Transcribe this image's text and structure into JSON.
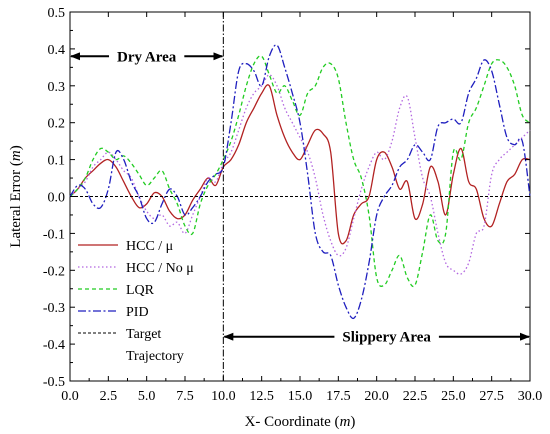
{
  "chart_data": {
    "type": "line",
    "xlabel": "X- Coordinate",
    "xlabel_unit": "m",
    "ylabel": "Lateral Error",
    "ylabel_unit": "m",
    "xlim": [
      0,
      30
    ],
    "ylim": [
      -0.5,
      0.5
    ],
    "xticks": [
      "0.0",
      "2.5",
      "5.0",
      "7.5",
      "10.0",
      "12.5",
      "15.0",
      "17.5",
      "20.0",
      "22.5",
      "25.0",
      "27.5",
      "30.0"
    ],
    "yticks": [
      "-0.5",
      "-0.4",
      "-0.3",
      "-0.2",
      "-0.1",
      "0.0",
      "0.1",
      "0.2",
      "0.3",
      "0.4",
      "0.5"
    ],
    "legend_position": "bottom-left",
    "regions": [
      {
        "label": "Dry Area",
        "x_range": [
          0,
          10
        ],
        "arrow_y": 0.38
      },
      {
        "label": "Slippery Area",
        "x_range": [
          10,
          30
        ],
        "arrow_y": -0.38
      }
    ],
    "divider_x": 10,
    "series": [
      {
        "name": "HCC / μ",
        "color": "#b22222",
        "dash": "solid",
        "x": [
          0,
          0.5,
          1,
          1.5,
          2,
          2.5,
          3,
          3.5,
          4,
          4.5,
          5,
          5.5,
          6,
          6.5,
          7,
          7.5,
          8,
          8.5,
          9,
          9.5,
          10,
          10.5,
          11,
          11.5,
          12,
          12.5,
          13,
          13.5,
          14,
          14.5,
          15,
          15.5,
          16,
          16.5,
          17,
          17.5,
          18,
          18.5,
          19,
          19.5,
          20,
          20.5,
          21,
          21.5,
          22,
          22.5,
          23,
          23.5,
          24,
          24.5,
          25,
          25.5,
          26,
          26.5,
          27,
          27.5,
          28,
          28.5,
          29,
          29.5,
          30
        ],
        "y": [
          0.0,
          0.02,
          0.05,
          0.07,
          0.09,
          0.1,
          0.08,
          0.04,
          0.0,
          -0.03,
          -0.02,
          0.01,
          0.0,
          -0.04,
          -0.06,
          -0.05,
          -0.01,
          0.02,
          0.05,
          0.03,
          0.08,
          0.1,
          0.14,
          0.2,
          0.24,
          0.28,
          0.3,
          0.22,
          0.16,
          0.12,
          0.1,
          0.14,
          0.18,
          0.17,
          0.12,
          -0.1,
          -0.12,
          -0.05,
          -0.02,
          0.0,
          0.1,
          0.12,
          0.08,
          0.02,
          0.04,
          -0.06,
          -0.02,
          0.08,
          0.04,
          -0.05,
          0.06,
          0.13,
          0.04,
          0.02,
          -0.06,
          -0.08,
          -0.02,
          0.04,
          0.06,
          0.1,
          0.1
        ]
      },
      {
        "name": "HCC / No μ",
        "color": "#b266e0",
        "dash": "1.5,2.5",
        "x": [
          0,
          0.5,
          1,
          1.5,
          2,
          2.5,
          3,
          3.5,
          4,
          4.5,
          5,
          5.5,
          6,
          6.5,
          7,
          7.5,
          8,
          8.5,
          9,
          9.5,
          10,
          10.5,
          11,
          11.5,
          12,
          12.5,
          13,
          13.5,
          14,
          14.5,
          15,
          15.5,
          16,
          16.5,
          17,
          17.5,
          18,
          18.5,
          19,
          19.5,
          20,
          20.5,
          21,
          21.5,
          22,
          22.5,
          23,
          23.5,
          24,
          24.5,
          25,
          25.5,
          26,
          26.5,
          27,
          27.5,
          28,
          28.5,
          29,
          29.5,
          30
        ],
        "y": [
          0.0,
          0.02,
          0.04,
          0.08,
          0.1,
          0.12,
          0.1,
          0.07,
          0.05,
          0.0,
          -0.04,
          -0.06,
          -0.05,
          -0.08,
          -0.07,
          -0.1,
          -0.05,
          0.0,
          0.05,
          0.04,
          0.09,
          0.12,
          0.18,
          0.24,
          0.28,
          0.3,
          0.33,
          0.3,
          0.24,
          0.2,
          0.16,
          0.12,
          0.05,
          -0.05,
          -0.12,
          -0.16,
          -0.14,
          -0.06,
          0.02,
          0.08,
          0.12,
          0.1,
          0.15,
          0.24,
          0.27,
          0.16,
          0.05,
          0.0,
          -0.1,
          -0.18,
          -0.2,
          -0.21,
          -0.18,
          -0.1,
          -0.08,
          0.06,
          0.1,
          0.12,
          0.14,
          0.16,
          0.18
        ]
      },
      {
        "name": "LQR",
        "color": "#22cc22",
        "dash": "4,3",
        "x": [
          0,
          0.5,
          1,
          1.5,
          2,
          2.5,
          3,
          3.5,
          4,
          4.5,
          5,
          5.5,
          6,
          6.5,
          7,
          7.5,
          8,
          8.5,
          9,
          9.5,
          10,
          10.5,
          11,
          11.5,
          12,
          12.5,
          13,
          13.5,
          14,
          14.5,
          15,
          15.5,
          16,
          16.5,
          17,
          17.5,
          18,
          18.5,
          19,
          19.5,
          20,
          20.5,
          21,
          21.5,
          22,
          22.5,
          23,
          23.5,
          24,
          24.5,
          25,
          25.5,
          26,
          26.5,
          27,
          27.5,
          28,
          28.5,
          29,
          29.5,
          30
        ],
        "y": [
          0.0,
          0.02,
          0.05,
          0.1,
          0.13,
          0.12,
          0.1,
          0.11,
          0.09,
          0.06,
          0.03,
          0.05,
          0.07,
          0.02,
          -0.02,
          -0.08,
          -0.1,
          -0.02,
          0.03,
          0.06,
          0.1,
          0.15,
          0.22,
          0.3,
          0.36,
          0.38,
          0.33,
          0.28,
          0.3,
          0.26,
          0.22,
          0.28,
          0.3,
          0.35,
          0.36,
          0.32,
          0.2,
          0.1,
          0.05,
          -0.05,
          -0.22,
          -0.24,
          -0.2,
          -0.16,
          -0.22,
          -0.24,
          -0.15,
          -0.05,
          -0.12,
          -0.1,
          0.12,
          0.1,
          0.2,
          0.24,
          0.3,
          0.36,
          0.37,
          0.35,
          0.3,
          0.22,
          0.2
        ]
      },
      {
        "name": "PID",
        "color": "#1f1fbf",
        "dash": "8,2.5,2,2.5",
        "x": [
          0,
          0.5,
          1,
          1.5,
          2,
          2.5,
          3,
          3.5,
          4,
          4.5,
          5,
          5.5,
          6,
          6.5,
          7,
          7.5,
          8,
          8.5,
          9,
          9.5,
          10,
          10.5,
          11,
          11.5,
          12,
          12.5,
          13,
          13.5,
          14,
          14.5,
          15,
          15.5,
          16,
          16.5,
          17,
          17.5,
          18,
          18.5,
          19,
          19.5,
          20,
          20.5,
          21,
          21.5,
          22,
          22.5,
          23,
          23.5,
          24,
          24.5,
          25,
          25.5,
          26,
          26.5,
          27,
          27.5,
          28,
          28.5,
          29,
          29.5,
          30
        ],
        "y": [
          0.0,
          0.03,
          0.02,
          -0.02,
          -0.03,
          0.02,
          0.12,
          0.1,
          0.04,
          0.0,
          -0.06,
          -0.07,
          -0.02,
          0.02,
          0.0,
          -0.05,
          -0.03,
          0.0,
          0.04,
          0.06,
          0.08,
          0.2,
          0.34,
          0.36,
          0.34,
          0.3,
          0.38,
          0.41,
          0.35,
          0.28,
          0.2,
          0.06,
          -0.1,
          -0.15,
          -0.16,
          -0.24,
          -0.3,
          -0.33,
          -0.28,
          -0.18,
          -0.05,
          0.0,
          0.03,
          0.08,
          0.1,
          0.14,
          0.12,
          0.1,
          0.19,
          0.2,
          0.21,
          0.2,
          0.28,
          0.32,
          0.37,
          0.34,
          0.25,
          0.16,
          0.14,
          0.15,
          0.0
        ]
      },
      {
        "name": "Target Trajectory",
        "color": "#000000",
        "dash": "3,2",
        "x": [
          0,
          30
        ],
        "y": [
          0,
          0
        ]
      }
    ]
  }
}
